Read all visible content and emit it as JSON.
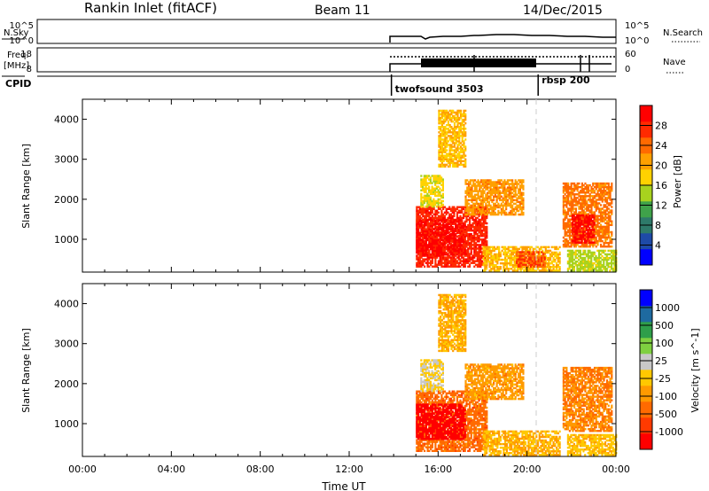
{
  "header": {
    "station": "Rankin Inlet (fitACF)",
    "beam": "Beam 11",
    "date": "14/Dec/2015"
  },
  "noise_panel": {
    "left_label": "N.Sky",
    "right_label": "N.Search",
    "left_ticks": [
      "10^5",
      "10^0"
    ],
    "right_ticks": [
      "10^5",
      "10^0"
    ]
  },
  "freq_panel": {
    "left_label_1": "Freq.",
    "left_label_2": "[MHz]",
    "right_label": "Nave",
    "left_ticks": [
      "18",
      "8"
    ],
    "right_ticks": [
      "60",
      "0"
    ]
  },
  "cpid": {
    "label": "CPID",
    "programs": [
      {
        "name": "twofsound 3503",
        "start_hour": 13.9
      },
      {
        "name": "rbsp 200",
        "start_hour": 20.5
      }
    ]
  },
  "x_axis": {
    "title": "Time UT",
    "ticks": [
      "00:00",
      "04:00",
      "08:00",
      "12:00",
      "16:00",
      "20:00",
      "00:00"
    ]
  },
  "chart_data": [
    {
      "type": "heatmap",
      "name": "power",
      "ylabel": "Slant Range [km]",
      "xlim": [
        0,
        24
      ],
      "ylim": [
        180,
        4500
      ],
      "yticks": [
        "1000",
        "2000",
        "3000",
        "4000"
      ],
      "colorbar": {
        "label": "Power [dB]",
        "ticks": [
          "28",
          "24",
          "20",
          "16",
          "12",
          "8",
          "4"
        ],
        "range": [
          0,
          30
        ],
        "colors": [
          "#0000ff",
          "#1e4aa8",
          "#2e7a6a",
          "#3fa24a",
          "#a8d21e",
          "#ffd200",
          "#ffa000",
          "#ff6a00",
          "#ff2a00",
          "#ff0000"
        ]
      },
      "regions": [
        {
          "t0": 15.0,
          "t1": 18.2,
          "r0": 300,
          "r1": 1800,
          "v": 26
        },
        {
          "t0": 15.0,
          "t1": 17.2,
          "r0": 600,
          "r1": 1500,
          "v": 28
        },
        {
          "t0": 15.2,
          "t1": 16.2,
          "r0": 1800,
          "r1": 2600,
          "v": 16
        },
        {
          "t0": 17.2,
          "t1": 19.8,
          "r0": 1600,
          "r1": 2500,
          "v": 20
        },
        {
          "t0": 18.0,
          "t1": 21.5,
          "r0": 200,
          "r1": 800,
          "v": 18
        },
        {
          "t0": 19.5,
          "t1": 20.8,
          "r0": 300,
          "r1": 700,
          "v": 24
        },
        {
          "t0": 21.6,
          "t1": 23.8,
          "r0": 800,
          "r1": 2400,
          "v": 22
        },
        {
          "t0": 22.0,
          "t1": 23.0,
          "r0": 900,
          "r1": 1600,
          "v": 28
        },
        {
          "t0": 21.8,
          "t1": 24.0,
          "r0": 200,
          "r1": 700,
          "v": 14
        },
        {
          "t0": 16.0,
          "t1": 17.2,
          "r0": 2800,
          "r1": 4200,
          "v": 18
        }
      ]
    },
    {
      "type": "heatmap",
      "name": "velocity",
      "ylabel": "Slant Range [km]",
      "xlim": [
        0,
        24
      ],
      "ylim": [
        180,
        4500
      ],
      "yticks": [
        "1000",
        "2000",
        "3000",
        "4000"
      ],
      "colorbar": {
        "label": "Velocity [m s^-1]",
        "ticks": [
          "1000",
          "500",
          "100",
          "25",
          "-25",
          "-100",
          "-500",
          "-1000"
        ],
        "range": [
          -1000,
          1000
        ],
        "colors": [
          "#ff0000",
          "#ff3a00",
          "#ff6a00",
          "#ff9a00",
          "#ffc800",
          "#c8c8c8",
          "#7fd040",
          "#2e9e4a",
          "#1e6aa0",
          "#0000ff"
        ]
      },
      "regions": [
        {
          "t0": 15.0,
          "t1": 18.2,
          "r0": 300,
          "r1": 1800,
          "v": -500
        },
        {
          "t0": 15.0,
          "t1": 17.2,
          "r0": 600,
          "r1": 1500,
          "v": -1000
        },
        {
          "t0": 15.2,
          "t1": 16.2,
          "r0": 1800,
          "r1": 2600,
          "v": -25
        },
        {
          "t0": 17.2,
          "t1": 19.8,
          "r0": 1600,
          "r1": 2500,
          "v": -300
        },
        {
          "t0": 18.0,
          "t1": 21.5,
          "r0": 200,
          "r1": 800,
          "v": -200
        },
        {
          "t0": 21.6,
          "t1": 23.8,
          "r0": 800,
          "r1": 2400,
          "v": -400
        },
        {
          "t0": 21.8,
          "t1": 24.0,
          "r0": 200,
          "r1": 700,
          "v": -150
        },
        {
          "t0": 16.0,
          "t1": 17.2,
          "r0": 2800,
          "r1": 4200,
          "v": -200
        }
      ]
    }
  ]
}
